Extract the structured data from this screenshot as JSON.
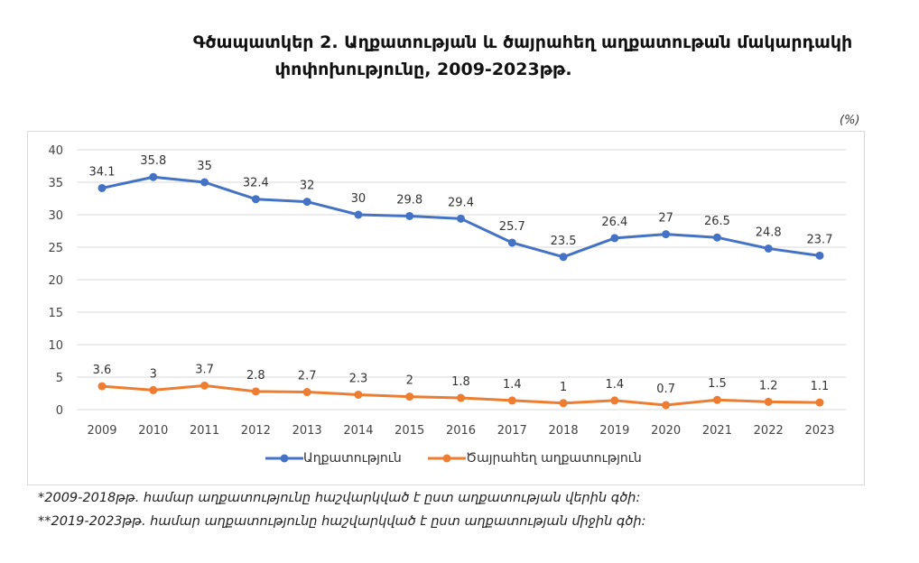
{
  "title": {
    "line1": "Գծապատկեր 2.    Աղքատության և ծայրահեղ աղքատութան մակարդակի",
    "line2": "փոփոխությունը, 2009-2023թթ."
  },
  "unit": "(%)",
  "footnotes": [
    "*2009-2018թթ. համար աղքատությունը հաշվարկված է ըստ աղքատության վերին գծի:",
    "**2019-2023թթ. համար աղքատությունը հաշվարկված է  ըստ աղքատության միջին գծի:"
  ],
  "chart_data": {
    "type": "line",
    "categories": [
      "2009",
      "2010",
      "2011",
      "2012",
      "2013",
      "2014",
      "2015",
      "2016",
      "2017",
      "2018",
      "2019",
      "2020",
      "2021",
      "2022",
      "2023"
    ],
    "series": [
      {
        "name": "Աղքատություն",
        "color": "#4472C4",
        "values": [
          34.1,
          35.8,
          35,
          32.4,
          32,
          30,
          29.8,
          29.4,
          25.7,
          23.5,
          26.4,
          27,
          26.5,
          24.8,
          23.7
        ]
      },
      {
        "name": "Ծայրահեղ աղքատություն",
        "color": "#ED7D31",
        "values": [
          3.6,
          3,
          3.7,
          2.8,
          2.7,
          2.3,
          2,
          1.8,
          1.4,
          1,
          1.4,
          0.7,
          1.5,
          1.2,
          1.1
        ]
      }
    ],
    "yticks": [
      0,
      5,
      10,
      15,
      20,
      25,
      30,
      35,
      40
    ],
    "ylim": [
      0,
      40
    ],
    "grid": true,
    "legend": "bottom",
    "data_labels": true
  }
}
